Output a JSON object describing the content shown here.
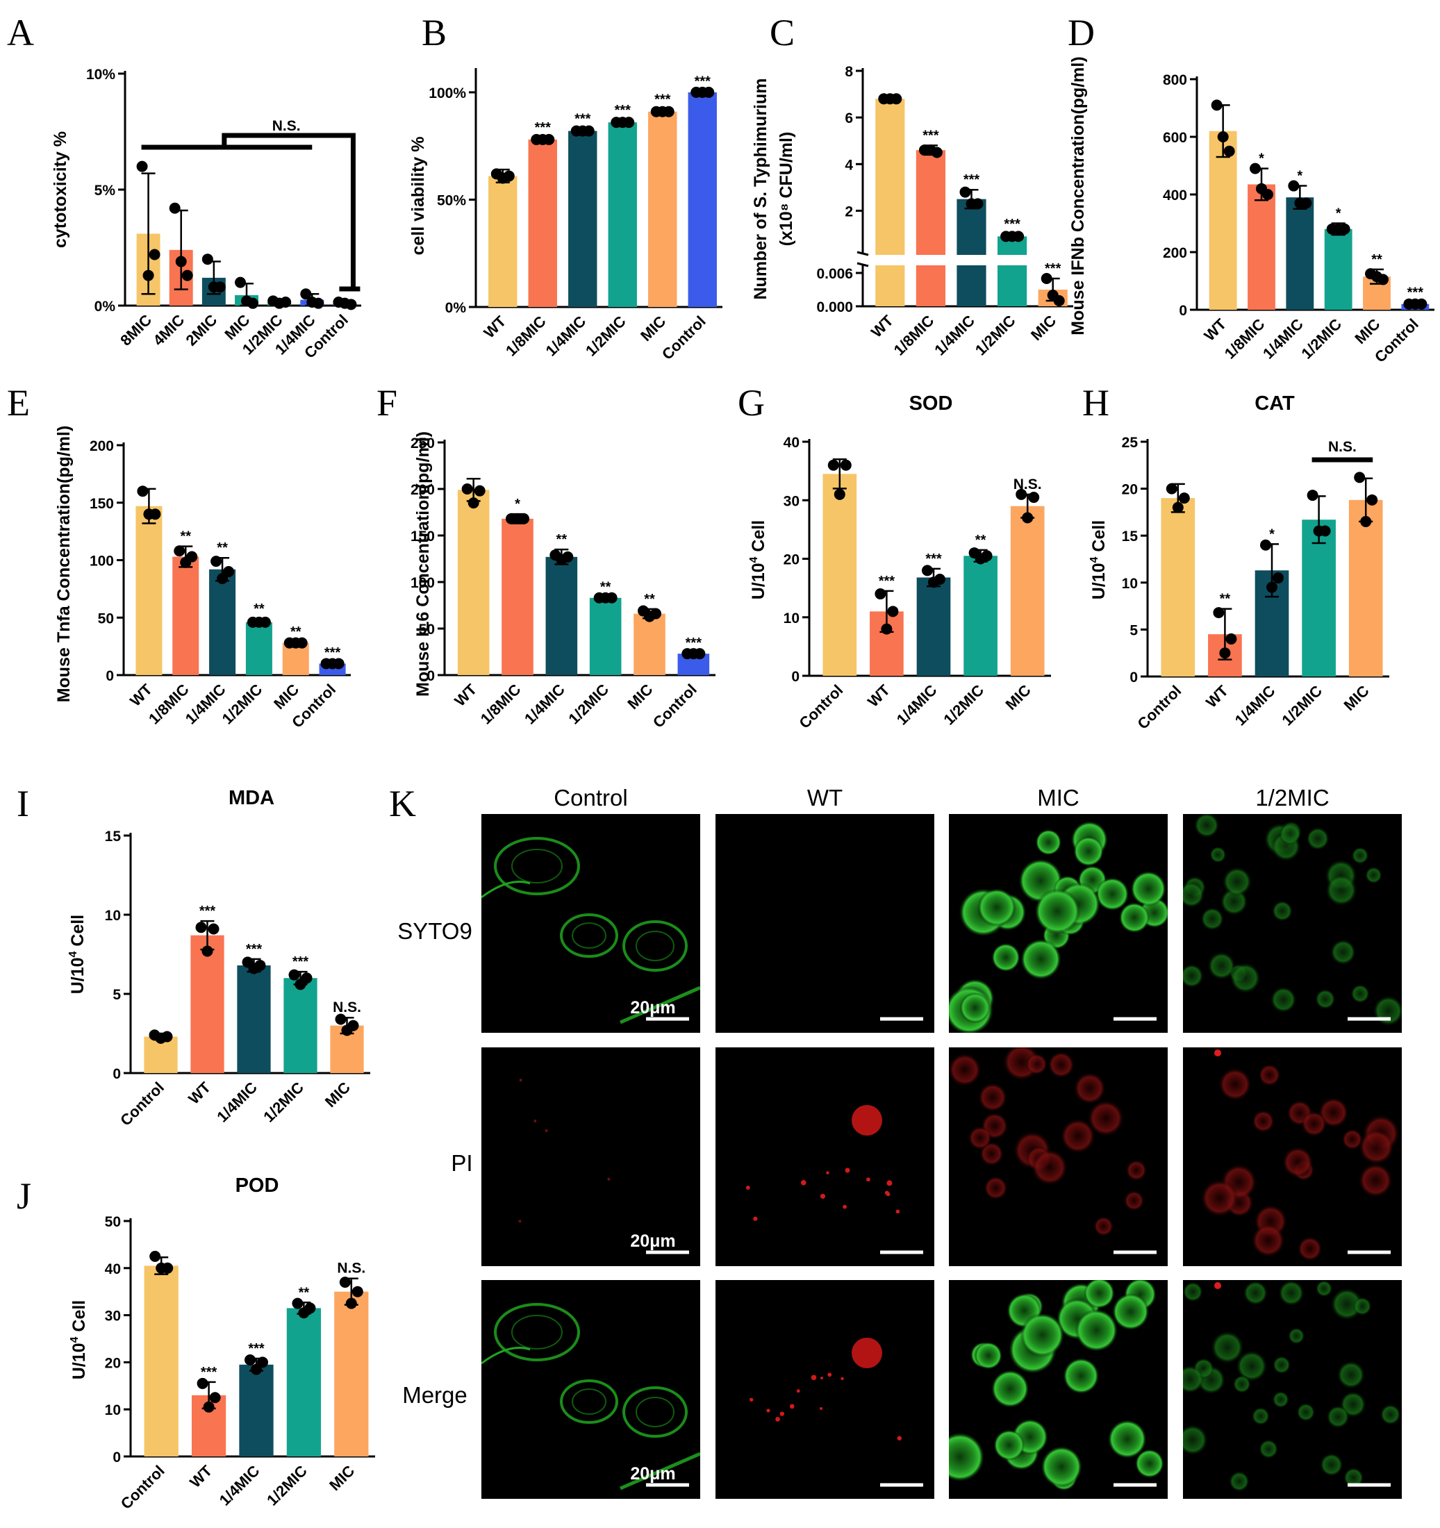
{
  "palette": {
    "WT": "#F6C567",
    "1/8MIC": "#F97451",
    "1/4MIC": "#0E4D5E",
    "1/2MIC": "#12A38E",
    "MIC": "#FDA660",
    "Control": "#3B5CEB",
    "Control_b": "#F6C567",
    "WT_b": "#F97451"
  },
  "chart_data": [
    {
      "type": "bar",
      "panel": "A",
      "ylabel": "cytotoxicity %",
      "yticks": [
        "0%",
        "5%",
        "10%"
      ],
      "ylim": [
        0,
        10
      ],
      "categories": [
        "8MIC",
        "4MIC",
        "2MIC",
        "MIC",
        "1/2MIC",
        "1/4MIC",
        "Control"
      ],
      "values": [
        3.1,
        2.4,
        1.2,
        0.45,
        0.15,
        0.25,
        0.1
      ],
      "errors": [
        2.6,
        1.7,
        0.7,
        0.5,
        0.1,
        0.25,
        0.1
      ],
      "points": [
        [
          6.0,
          1.3,
          2.2
        ],
        [
          4.2,
          1.9,
          1.3
        ],
        [
          2.0,
          0.8,
          0.8
        ],
        [
          1.0,
          0.2,
          0.1
        ],
        [
          0.2,
          0.1,
          0.15
        ],
        [
          0.5,
          0.15,
          0.1
        ],
        [
          0.15,
          0.1,
          0.05
        ]
      ],
      "colors": [
        "#F6C567",
        "#F97451",
        "#0E4D5E",
        "#12A38E",
        "#12A38E",
        "#3B5CEB",
        "#3B5CEB"
      ],
      "annotation": "N.S."
    },
    {
      "type": "bar",
      "panel": "B",
      "ylabel": "cell viability %",
      "yticks": [
        "0%",
        "50%",
        "100%"
      ],
      "ylim": [
        0,
        110
      ],
      "categories": [
        "WT",
        "1/8MIC",
        "1/4MIC",
        "1/2MIC",
        "MIC",
        "Control"
      ],
      "values": [
        61,
        78,
        82,
        86,
        91,
        100
      ],
      "errors": [
        3,
        1,
        1,
        1,
        1,
        0.5
      ],
      "points": [
        [
          62,
          60,
          61
        ],
        [
          78,
          78,
          78
        ],
        [
          82,
          82,
          82
        ],
        [
          86,
          86,
          86
        ],
        [
          91,
          91,
          91
        ],
        [
          100,
          100,
          100
        ]
      ],
      "colors": [
        "#F6C567",
        "#F97451",
        "#0E4D5E",
        "#12A38E",
        "#FDA660",
        "#3B5CEB"
      ],
      "sig": [
        "",
        "***",
        "***",
        "***",
        "***",
        "***"
      ]
    },
    {
      "type": "bar",
      "panel": "C",
      "ylabel": "Number of S. Typhimurium",
      "ylabel2": "(x10⁸ CFU/ml)",
      "yticks_top": [
        "2",
        "4",
        "6",
        "8"
      ],
      "yticks_bottom": [
        "0.000",
        "0.006"
      ],
      "categories": [
        "WT",
        "1/8MIC",
        "1/4MIC",
        "1/2MIC",
        "MIC"
      ],
      "values": [
        6.8,
        4.6,
        2.5,
        0.9,
        0.003
      ],
      "errors": [
        0.1,
        0.2,
        0.4,
        0.1,
        0.002
      ],
      "points": [
        [
          6.8,
          6.8,
          6.8
        ],
        [
          4.6,
          4.6,
          4.5
        ],
        [
          2.8,
          2.3,
          2.3
        ],
        [
          0.9,
          0.9,
          0.9
        ],
        [
          0.005,
          0.002,
          0.001
        ]
      ],
      "colors": [
        "#F6C567",
        "#F97451",
        "#0E4D5E",
        "#12A38E",
        "#FDA660"
      ],
      "sig": [
        "",
        "***",
        "***",
        "***",
        "***"
      ]
    },
    {
      "type": "bar",
      "panel": "D",
      "ylabel": "Mouse IFNb Concentration(pg/ml)",
      "yticks": [
        "0",
        "200",
        "400",
        "600",
        "800"
      ],
      "ylim": [
        0,
        800
      ],
      "categories": [
        "WT",
        "1/8MIC",
        "1/4MIC",
        "1/2MIC",
        "MIC",
        "Control"
      ],
      "values": [
        620,
        435,
        390,
        280,
        115,
        20
      ],
      "errors": [
        90,
        55,
        40,
        20,
        25,
        5
      ],
      "points": [
        [
          710,
          600,
          550
        ],
        [
          490,
          420,
          400
        ],
        [
          430,
          370,
          370
        ],
        [
          280,
          280,
          280
        ],
        [
          125,
          115,
          105
        ],
        [
          20,
          20,
          20
        ]
      ],
      "colors": [
        "#F6C567",
        "#F97451",
        "#0E4D5E",
        "#12A38E",
        "#FDA660",
        "#3B5CEB"
      ],
      "sig": [
        "",
        "*",
        "*",
        "*",
        "**",
        "***"
      ]
    },
    {
      "type": "bar",
      "panel": "E",
      "ylabel": "Mouse Tnfa Concentration(pg/ml)",
      "yticks": [
        "0",
        "50",
        "100",
        "150",
        "200"
      ],
      "ylim": [
        0,
        200
      ],
      "categories": [
        "WT",
        "1/8MIC",
        "1/4MIC",
        "1/2MIC",
        "MIC",
        "Control"
      ],
      "values": [
        147,
        103,
        92,
        46,
        28,
        10
      ],
      "errors": [
        15,
        9,
        10,
        3,
        1,
        1
      ],
      "points": [
        [
          160,
          140,
          140
        ],
        [
          108,
          98,
          103
        ],
        [
          99,
          84,
          90
        ],
        [
          46,
          46,
          46
        ],
        [
          28,
          28,
          28
        ],
        [
          10,
          10,
          10
        ]
      ],
      "colors": [
        "#F6C567",
        "#F97451",
        "#0E4D5E",
        "#12A38E",
        "#FDA660",
        "#3B5CEB"
      ],
      "sig": [
        "",
        "**",
        "**",
        "**",
        "**",
        "***"
      ]
    },
    {
      "type": "bar",
      "panel": "F",
      "ylabel": "Mouse IL6 Concentration(pg/ml)",
      "yticks": [
        "0",
        "50",
        "100",
        "150",
        "200",
        "250"
      ],
      "ylim": [
        0,
        250
      ],
      "categories": [
        "WT",
        "1/8MIC",
        "1/4MIC",
        "1/2MIC",
        "MIC",
        "Control"
      ],
      "values": [
        199,
        168,
        127,
        83,
        66,
        23
      ],
      "errors": [
        12,
        5,
        8,
        1,
        5,
        1
      ],
      "points": [
        [
          200,
          185,
          198
        ],
        [
          168,
          168,
          168
        ],
        [
          129,
          124,
          127
        ],
        [
          83,
          83,
          83
        ],
        [
          69,
          63,
          66
        ],
        [
          23,
          23,
          23
        ]
      ],
      "colors": [
        "#F6C567",
        "#F97451",
        "#0E4D5E",
        "#12A38E",
        "#FDA660",
        "#3B5CEB"
      ],
      "sig": [
        "",
        "*",
        "**",
        "**",
        "**",
        "***"
      ]
    },
    {
      "type": "bar",
      "panel": "G",
      "title": "SOD",
      "ylabel": "U/10⁴ Cell",
      "yticks": [
        "0",
        "10",
        "20",
        "30",
        "40"
      ],
      "ylim": [
        0,
        40
      ],
      "categories": [
        "Control",
        "WT",
        "1/4MIC",
        "1/2MIC",
        "MIC"
      ],
      "values": [
        34.5,
        11,
        16.8,
        20.5,
        29
      ],
      "errors": [
        2.5,
        3.5,
        1.5,
        1,
        2
      ],
      "points": [
        [
          36,
          31,
          36
        ],
        [
          14,
          8,
          11
        ],
        [
          18,
          16,
          16.5
        ],
        [
          21,
          20,
          20.5
        ],
        [
          31,
          27,
          30.5
        ]
      ],
      "colors": [
        "#F6C567",
        "#F97451",
        "#0E4D5E",
        "#12A38E",
        "#FDA660"
      ],
      "sig": [
        "",
        "***",
        "***",
        "**",
        "N.S."
      ]
    },
    {
      "type": "bar",
      "panel": "H",
      "title": "CAT",
      "ylabel": "U/10⁴ Cell",
      "yticks": [
        "0",
        "5",
        "10",
        "15",
        "20",
        "25"
      ],
      "ylim": [
        0,
        25
      ],
      "categories": [
        "Control",
        "WT",
        "1/4MIC",
        "1/2MIC",
        "MIC"
      ],
      "values": [
        19,
        4.5,
        11.3,
        16.7,
        18.8
      ],
      "errors": [
        1.5,
        2.7,
        2.8,
        2.5,
        2.3
      ],
      "points": [
        [
          20,
          18,
          19
        ],
        [
          6.8,
          2.5,
          4
        ],
        [
          14,
          9.5,
          10.5
        ],
        [
          19.3,
          15.5,
          15.5
        ],
        [
          21.2,
          16.5,
          18.8
        ]
      ],
      "colors": [
        "#F6C567",
        "#F97451",
        "#0E4D5E",
        "#12A38E",
        "#FDA660"
      ],
      "sig": [
        "",
        "**",
        "*",
        "",
        ""
      ],
      "annotation": "N.S."
    },
    {
      "type": "bar",
      "panel": "I",
      "title": "MDA",
      "ylabel": "U/10⁴ Cell",
      "yticks": [
        "0",
        "5",
        "10",
        "15"
      ],
      "ylim": [
        0,
        15
      ],
      "categories": [
        "Control",
        "WT",
        "1/4MIC",
        "1/2MIC",
        "MIC"
      ],
      "values": [
        2.3,
        8.7,
        6.8,
        6,
        3
      ],
      "errors": [
        0.2,
        0.9,
        0.4,
        0.4,
        0.5
      ],
      "points": [
        [
          2.4,
          2.2,
          2.3
        ],
        [
          9.2,
          7.7,
          9.1
        ],
        [
          7.0,
          6.6,
          6.8
        ],
        [
          6.2,
          5.6,
          6.0
        ],
        [
          3.4,
          2.7,
          3.0
        ]
      ],
      "colors": [
        "#F6C567",
        "#F97451",
        "#0E4D5E",
        "#12A38E",
        "#FDA660"
      ],
      "sig": [
        "",
        "***",
        "***",
        "***",
        "N.S."
      ]
    },
    {
      "type": "bar",
      "panel": "J",
      "title": "POD",
      "ylabel": "U/10⁴ Cell",
      "yticks": [
        "0",
        "10",
        "20",
        "30",
        "40",
        "50"
      ],
      "ylim": [
        0,
        50
      ],
      "categories": [
        "Control",
        "WT",
        "1/4MIC",
        "1/2MIC",
        "MIC"
      ],
      "values": [
        40.5,
        13,
        19.5,
        31.5,
        35
      ],
      "errors": [
        1.8,
        2.8,
        1.3,
        1.2,
        2.8
      ],
      "points": [
        [
          42.5,
          40,
          40
        ],
        [
          15.5,
          10.5,
          12.5
        ],
        [
          20.5,
          18.5,
          20
        ],
        [
          32.5,
          30.5,
          31.5
        ],
        [
          37,
          32.5,
          35
        ]
      ],
      "colors": [
        "#F6C567",
        "#F97451",
        "#0E4D5E",
        "#12A38E",
        "#FDA660"
      ],
      "sig": [
        "",
        "***",
        "***",
        "**",
        "N.S."
      ]
    }
  ],
  "panel_labels": [
    "A",
    "B",
    "C",
    "D",
    "E",
    "F",
    "G",
    "H",
    "I",
    "J",
    "K"
  ],
  "microscopy": {
    "columns": [
      "Control",
      "WT",
      "MIC",
      "1/2MIC"
    ],
    "rows": [
      "SYTO9",
      "PI",
      "Merge"
    ],
    "scale_bar": "20μm"
  }
}
